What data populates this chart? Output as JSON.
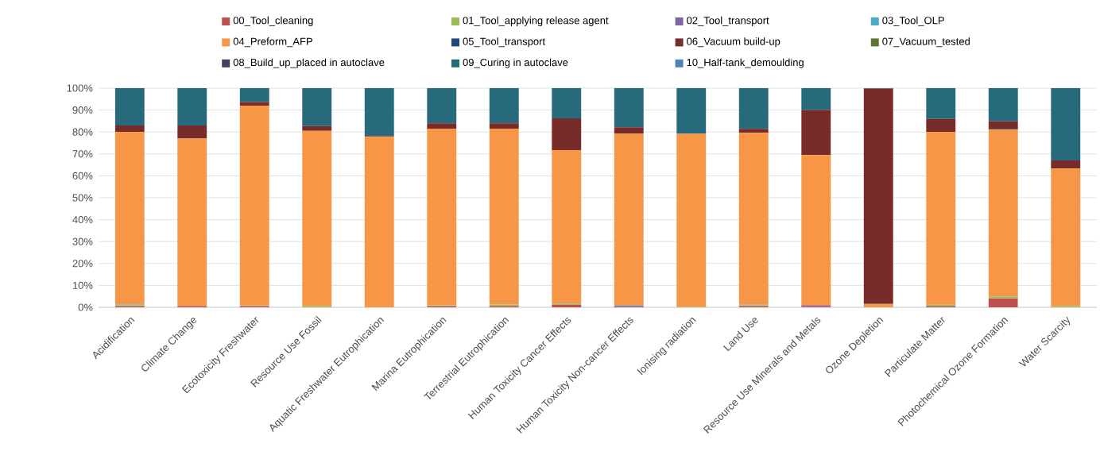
{
  "chart_data": {
    "type": "bar",
    "stacked": true,
    "categories": [
      "Acidification",
      "Climate Change",
      "Ecotoxicity Freshwater",
      "Resource Use Fossil",
      "Aquatic Freshwater Eutrophication",
      "Marina Eutrophication",
      "Terrestrial Eutrophication",
      "Human Toxicity Cancer Effects",
      "Human Toxicity Non-cancer Effects",
      "Ionising radiation",
      "Land Use",
      "Resource Use Minerals and Metals",
      "Ozone Depletion",
      "Particulate Matter",
      "Photochemical Ozone Formation",
      "Water Scarcity"
    ],
    "series": [
      {
        "name": "00_Tool_cleaning",
        "color": "#c0504d",
        "values": [
          0.5,
          0.5,
          0.5,
          0,
          0,
          0.5,
          0.5,
          1.2,
          0.5,
          0,
          0.5,
          0.5,
          0,
          0.5,
          4.2,
          0
        ]
      },
      {
        "name": "01_Tool_applying release agent",
        "color": "#9bbb59",
        "values": [
          0.5,
          0,
          0.3,
          0.5,
          0,
          0.4,
          0.8,
          0.5,
          0,
          0.2,
          0.4,
          0,
          0,
          0.7,
          0.8,
          0.5
        ]
      },
      {
        "name": "02_Tool_transport",
        "color": "#8064a2",
        "values": [
          0,
          0,
          0,
          0,
          0,
          0,
          0,
          0,
          0,
          0,
          0,
          0.5,
          0,
          0,
          0,
          0
        ]
      },
      {
        "name": "03_Tool_OLP",
        "color": "#4bacc6",
        "values": [
          0.3,
          0,
          0,
          0,
          0,
          0,
          0,
          0,
          0.5,
          0,
          0.3,
          0,
          0,
          0,
          0,
          0
        ]
      },
      {
        "name": "04_Preform_AFP",
        "color": "#f79646",
        "values": [
          78.7,
          76.5,
          91.2,
          80,
          77.8,
          80.6,
          80.2,
          70,
          78.2,
          79,
          78.4,
          68.5,
          1.5,
          78.8,
          76.2,
          62.8
        ]
      },
      {
        "name": "05_Tool_transport",
        "color": "#1f497d",
        "values": [
          0,
          0,
          0,
          0,
          0,
          0,
          0,
          0,
          0,
          0,
          0,
          0,
          0,
          0,
          0.2,
          0
        ]
      },
      {
        "name": "06_Vacuum build-up",
        "color": "#772c2a",
        "values": [
          3,
          6,
          1.7,
          2.2,
          0.4,
          2.5,
          2.5,
          14.5,
          3,
          null,
          1.8,
          20.5,
          98.2,
          6,
          3.5,
          3.7
        ]
      },
      {
        "name": "07_Vacuum_tested",
        "color": "#5f7530",
        "values": [
          0,
          0,
          0,
          0,
          0,
          0,
          0,
          0,
          0,
          0,
          0,
          0,
          0,
          0,
          0,
          0
        ]
      },
      {
        "name": "08_Build_up_placed in autoclave",
        "color": "#4d3b62",
        "values": [
          0,
          0,
          0,
          0,
          0,
          0,
          0,
          0,
          0,
          0,
          0,
          0,
          0,
          0,
          0,
          0
        ]
      },
      {
        "name": "09_Curing in autoclave",
        "color": "#276a7c",
        "values": [
          17,
          17,
          6.3,
          17.3,
          21.8,
          16,
          16,
          13.8,
          17.8,
          20.8,
          18.6,
          10,
          0.3,
          14,
          15.1,
          33
        ]
      },
      {
        "name": "10_Half-tank_demoulding",
        "color": "#4f81bd",
        "values": [
          0,
          0,
          0,
          0,
          0,
          0,
          0,
          0,
          0,
          0,
          0,
          0,
          0,
          0,
          0,
          0
        ]
      }
    ],
    "ylim": [
      0,
      100
    ],
    "yticks": [
      {
        "value": 0,
        "label": "0%"
      },
      {
        "value": 10,
        "label": "10%"
      },
      {
        "value": 20,
        "label": "20%"
      },
      {
        "value": 30,
        "label": "30%"
      },
      {
        "value": 40,
        "label": "40%"
      },
      {
        "value": 50,
        "label": "50%"
      },
      {
        "value": 60,
        "label": "60%"
      },
      {
        "value": 70,
        "label": "70%"
      },
      {
        "value": 80,
        "label": "80%"
      },
      {
        "value": 90,
        "label": "90%"
      },
      {
        "value": 100,
        "label": "100%"
      }
    ],
    "grid": "y",
    "legend": "top"
  }
}
